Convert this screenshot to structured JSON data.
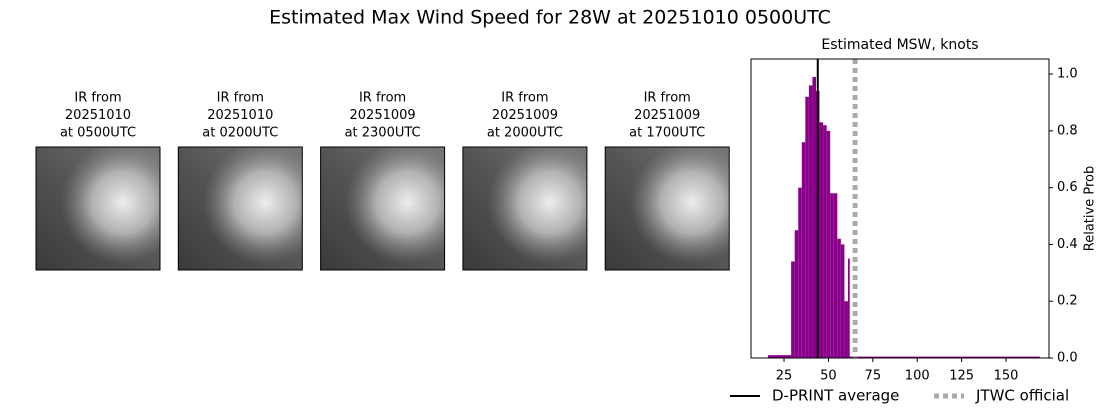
{
  "title": "Estimated Max Wind Speed for 28W at 20251010 0500UTC",
  "panels": [
    {
      "lines": [
        "IR from",
        "20251010",
        "at 0500UTC"
      ]
    },
    {
      "lines": [
        "IR from",
        "20251010",
        "at 0200UTC"
      ]
    },
    {
      "lines": [
        "IR from",
        "20251009",
        "at 2300UTC"
      ]
    },
    {
      "lines": [
        "IR from",
        "20251009",
        "at 2000UTC"
      ]
    },
    {
      "lines": [
        "IR from",
        "20251009",
        "at 1700UTC"
      ]
    }
  ],
  "chart_data": {
    "type": "histogram",
    "title": "Estimated MSW, knots",
    "y_label": "Relative Prob",
    "color": "#8b008b",
    "bins": [
      16,
      29,
      31,
      33,
      35,
      37,
      39,
      41,
      43,
      45,
      47,
      49,
      51,
      53,
      55,
      57,
      59,
      61,
      62,
      169
    ],
    "values": [
      0.01,
      0.34,
      0.45,
      0.6,
      0.76,
      0.92,
      0.96,
      0.99,
      0.94,
      0.83,
      0.82,
      0.8,
      0.58,
      0.58,
      0.42,
      0.4,
      0.2,
      0.35,
      0.005
    ],
    "xlim": [
      6.4,
      174.2
    ],
    "xticks": [
      25,
      50,
      75,
      100,
      125,
      150
    ],
    "ylim": [
      0,
      1.053
    ],
    "yticks": [
      {
        "value": 0,
        "label": "0.0"
      },
      0.2,
      0.4,
      0.6,
      0.8,
      {
        "value": 1,
        "label": "1.0"
      }
    ],
    "lines": [
      {
        "name": "D-PRINT average",
        "value": 44,
        "color": "#000000",
        "style": "solid"
      },
      {
        "name": "JTWC official",
        "value": 65,
        "color": "#aaaaaa",
        "style": "dotted"
      }
    ]
  }
}
